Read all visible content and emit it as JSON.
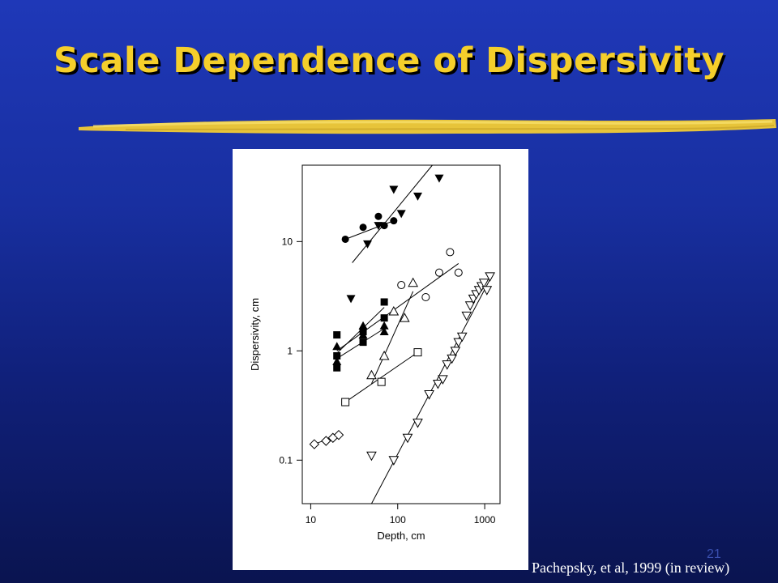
{
  "slide": {
    "title": "Scale Dependence of Dispersivity",
    "page_number": "21",
    "citation": "Pachepsky, et al, 1999 (in review)",
    "colors": {
      "title": "#f5cf2b",
      "underline": "#e7c43a",
      "background_top": "#1f38b8",
      "background_bottom": "#0a1450"
    }
  },
  "chart_data": {
    "type": "scatter",
    "title": "",
    "xlabel": "Depth, cm",
    "ylabel": "Dispersivity, cm",
    "xscale": "log",
    "yscale": "log",
    "xlim": [
      8,
      1500
    ],
    "ylim": [
      0.04,
      50
    ],
    "xticks": [
      {
        "value": 10,
        "label": "10"
      },
      {
        "value": 100,
        "label": "100"
      },
      {
        "value": 1000,
        "label": "1000"
      }
    ],
    "yticks": [
      {
        "value": 0.1,
        "label": "0.1"
      },
      {
        "value": 1,
        "label": "1"
      },
      {
        "value": 10,
        "label": "10"
      }
    ],
    "grid": false,
    "legend": "none",
    "series": [
      {
        "marker": "filled-triangle-down",
        "points": [
          [
            29,
            3.0
          ],
          [
            45,
            9.5
          ],
          [
            60,
            14
          ],
          [
            90,
            30
          ],
          [
            110,
            18
          ],
          [
            170,
            26
          ],
          [
            300,
            38
          ]
        ],
        "fit": [
          [
            30,
            6.4
          ],
          [
            250,
            50
          ]
        ]
      },
      {
        "marker": "filled-circle",
        "points": [
          [
            25,
            10.5
          ],
          [
            40,
            13.5
          ],
          [
            60,
            17
          ],
          [
            70,
            14
          ],
          [
            90,
            15.5
          ]
        ],
        "fit": [
          [
            25,
            10.5
          ],
          [
            90,
            15.5
          ]
        ]
      },
      {
        "marker": "open-circle",
        "points": [
          [
            110,
            4.0
          ],
          [
            210,
            3.1
          ],
          [
            300,
            5.2
          ],
          [
            400,
            8.0
          ],
          [
            500,
            5.2
          ]
        ],
        "fit": [
          [
            20,
            1.0
          ],
          [
            500,
            6.3
          ]
        ]
      },
      {
        "marker": "filled-square",
        "points": [
          [
            20,
            1.4
          ],
          [
            20,
            0.9
          ],
          [
            20,
            0.7
          ],
          [
            40,
            1.2
          ],
          [
            40,
            1.5
          ],
          [
            70,
            2.8
          ],
          [
            70,
            2.0
          ]
        ],
        "fit": [
          [
            20,
            0.95
          ],
          [
            70,
            2.5
          ]
        ]
      },
      {
        "marker": "filled-triangle-up",
        "points": [
          [
            20,
            1.1
          ],
          [
            20,
            0.8
          ],
          [
            40,
            1.7
          ],
          [
            40,
            1.4
          ],
          [
            70,
            1.7
          ],
          [
            70,
            1.5
          ]
        ],
        "fit": [
          [
            20,
            0.85
          ],
          [
            70,
            1.6
          ]
        ]
      },
      {
        "marker": "open-triangle-up",
        "points": [
          [
            70,
            0.9
          ],
          [
            120,
            2.0
          ],
          [
            150,
            4.2
          ],
          [
            50,
            0.6
          ],
          [
            90,
            2.3
          ]
        ],
        "fit": [
          [
            50,
            0.5
          ],
          [
            150,
            3.5
          ]
        ]
      },
      {
        "marker": "open-square",
        "points": [
          [
            25,
            0.34
          ],
          [
            65,
            0.52
          ],
          [
            170,
            0.97
          ]
        ],
        "fit": [
          [
            25,
            0.34
          ],
          [
            170,
            0.97
          ]
        ]
      },
      {
        "marker": "open-diamond",
        "points": [
          [
            11,
            0.14
          ],
          [
            15,
            0.15
          ],
          [
            18,
            0.16
          ],
          [
            21,
            0.17
          ]
        ],
        "fit": [
          [
            11,
            0.14
          ],
          [
            21,
            0.17
          ]
        ]
      },
      {
        "marker": "open-triangle-down",
        "points": [
          [
            50,
            0.11
          ],
          [
            90,
            0.1
          ],
          [
            130,
            0.16
          ],
          [
            170,
            0.22
          ],
          [
            230,
            0.4
          ],
          [
            290,
            0.5
          ],
          [
            330,
            0.55
          ],
          [
            370,
            0.75
          ],
          [
            420,
            0.85
          ],
          [
            460,
            1.0
          ],
          [
            500,
            1.2
          ],
          [
            550,
            1.35
          ],
          [
            620,
            2.1
          ],
          [
            680,
            2.6
          ],
          [
            740,
            3.0
          ],
          [
            800,
            3.3
          ],
          [
            860,
            3.6
          ],
          [
            920,
            3.9
          ],
          [
            980,
            4.2
          ],
          [
            1060,
            3.6
          ],
          [
            1150,
            4.8
          ]
        ],
        "fit": [
          [
            50,
            0.04
          ],
          [
            1200,
            4.8
          ]
        ]
      }
    ]
  }
}
